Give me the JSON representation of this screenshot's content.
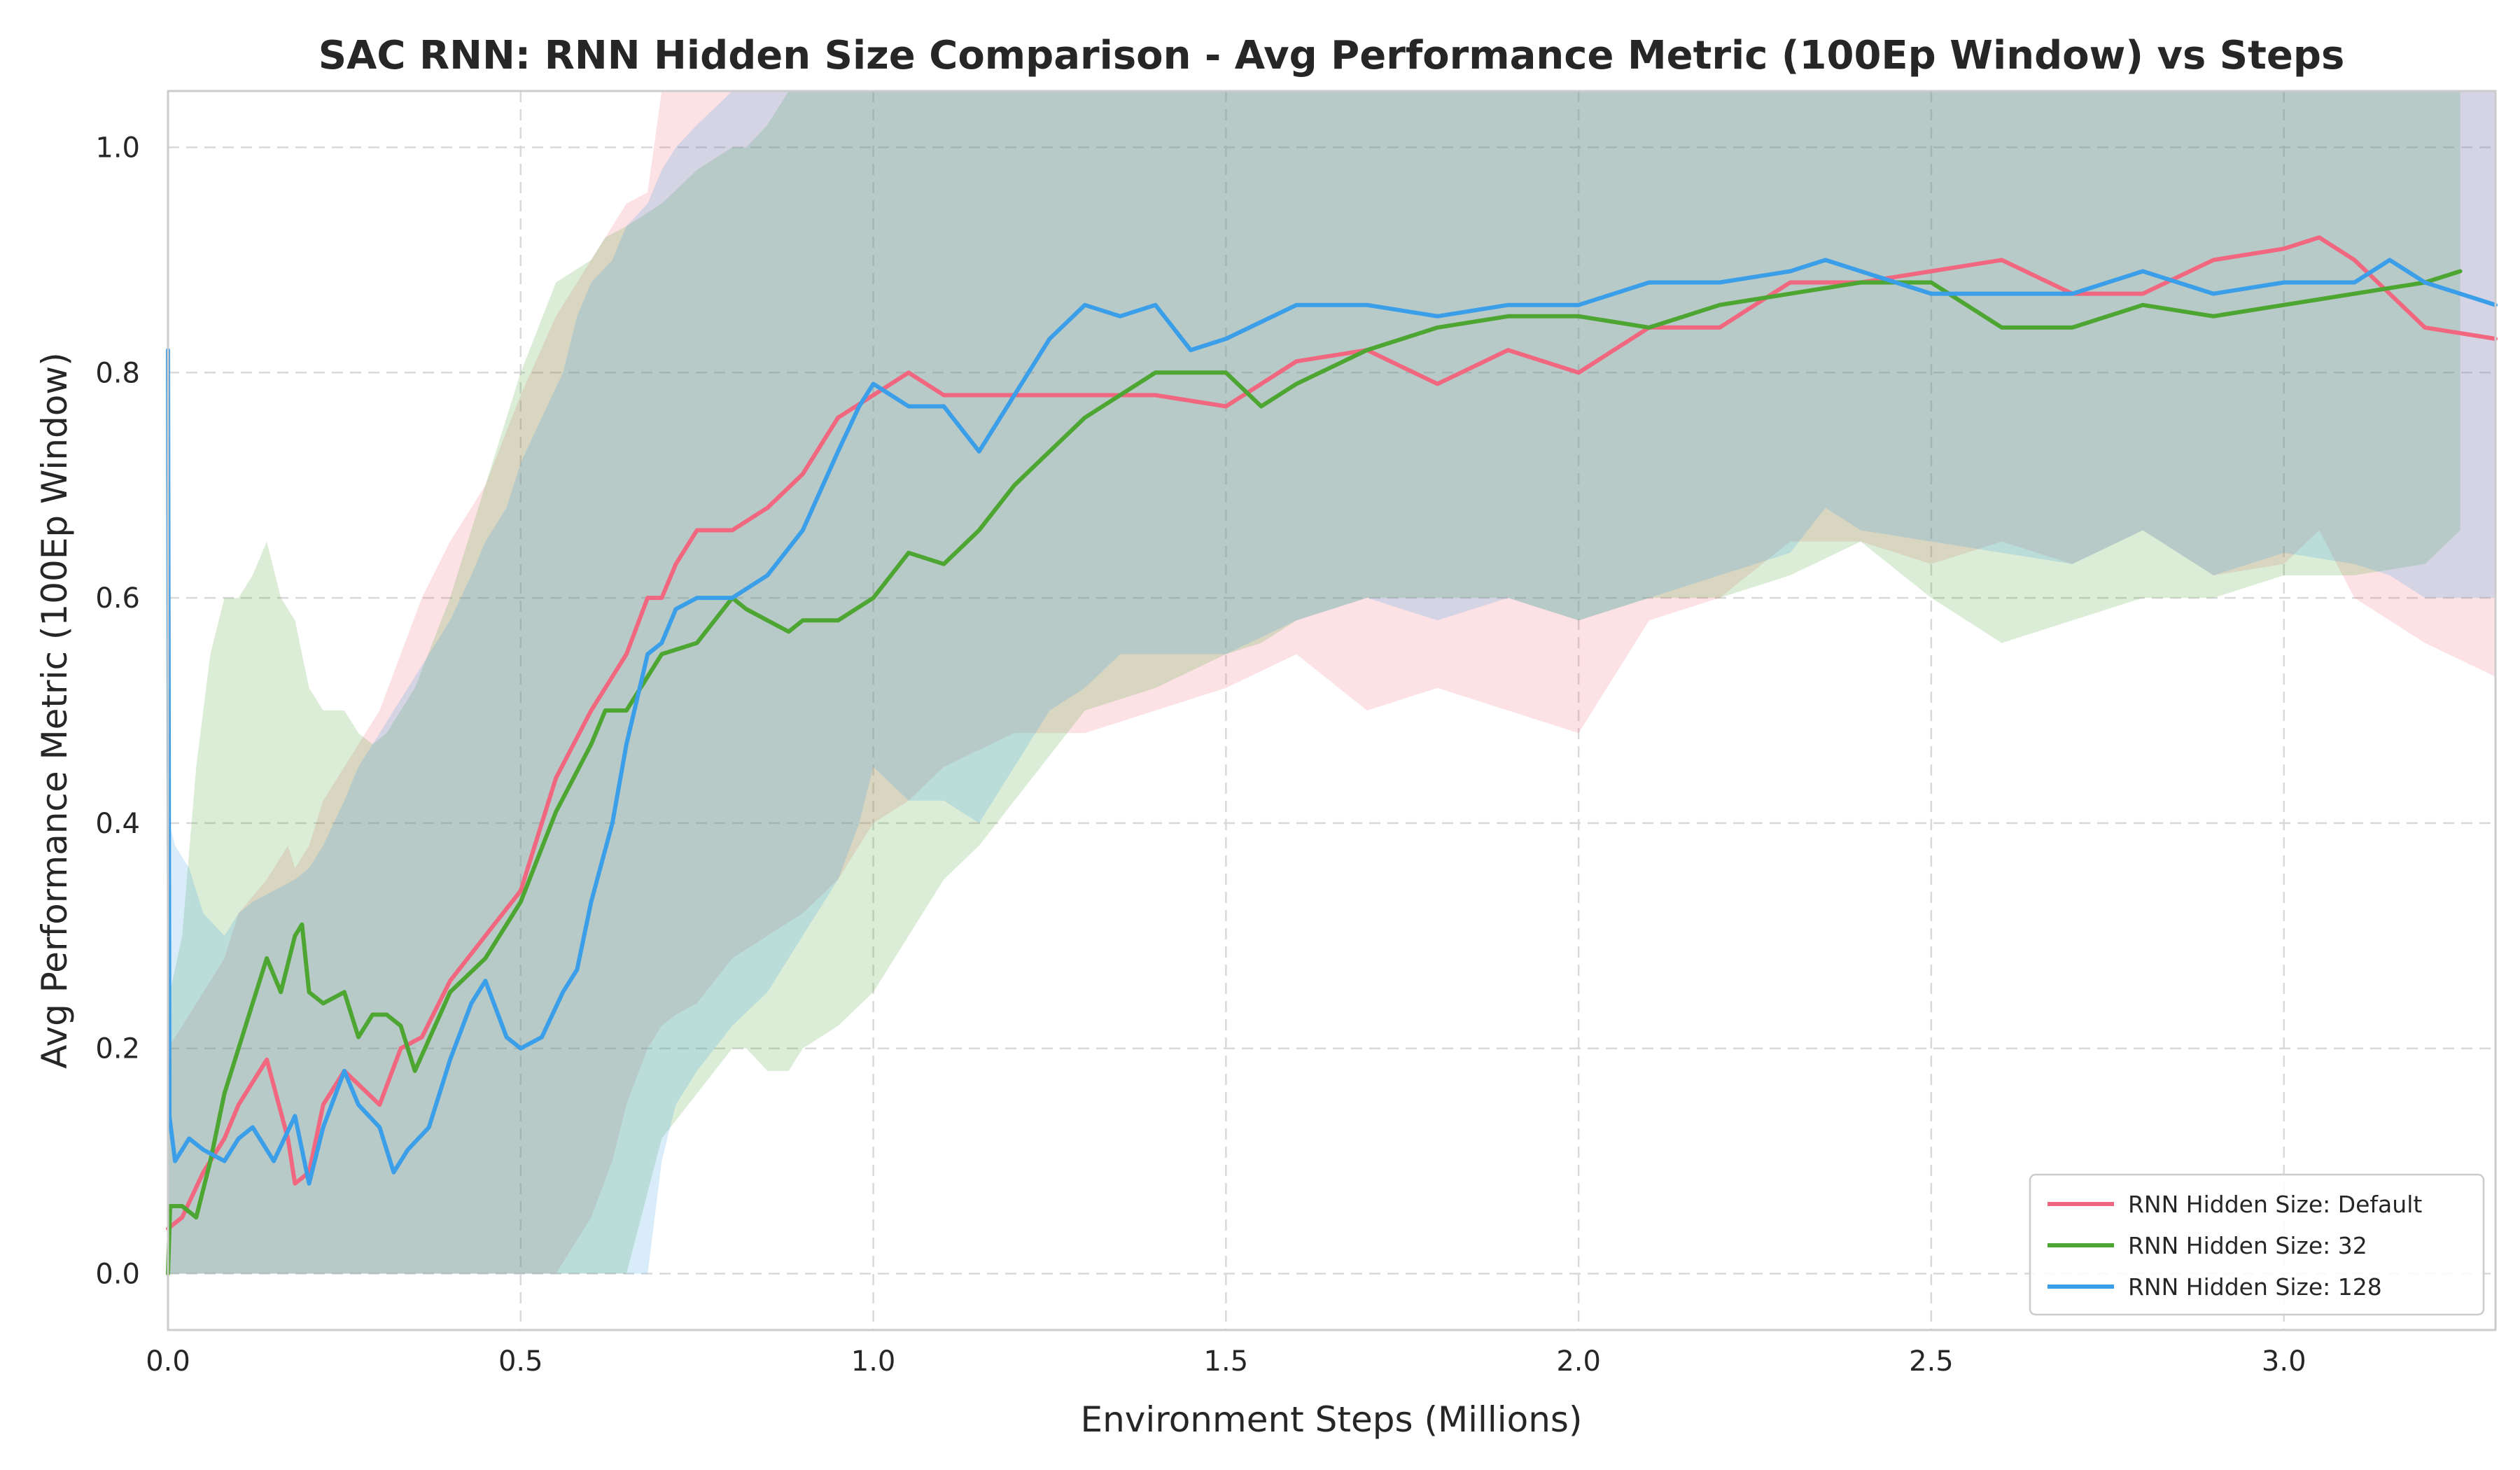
{
  "chart_data": {
    "type": "line",
    "title": "SAC RNN: RNN Hidden Size Comparison - Avg Performance Metric (100Ep Window) vs Steps",
    "xlabel": "Environment Steps (Millions)",
    "ylabel": "Avg Performance Metric (100Ep Window)",
    "xlim": [
      0,
      3.3
    ],
    "ylim": [
      -0.05,
      1.05
    ],
    "xticks": [
      0.0,
      0.5,
      1.0,
      1.5,
      2.0,
      2.5,
      3.0
    ],
    "xtick_labels": [
      "0.0",
      "0.5",
      "1.0",
      "1.5",
      "2.0",
      "2.5",
      "3.0"
    ],
    "yticks": [
      0.0,
      0.2,
      0.4,
      0.6,
      0.8,
      1.0
    ],
    "ytick_labels": [
      "0.0",
      "0.2",
      "0.4",
      "0.6",
      "0.8",
      "1.0"
    ],
    "grid": true,
    "legend_position": "bottom-right",
    "series": [
      {
        "name": "RNN Hidden Size: Default",
        "color": "#f0677f",
        "x": [
          0.0,
          0.02,
          0.05,
          0.08,
          0.1,
          0.14,
          0.17,
          0.18,
          0.2,
          0.22,
          0.25,
          0.3,
          0.33,
          0.36,
          0.4,
          0.45,
          0.5,
          0.55,
          0.6,
          0.63,
          0.65,
          0.68,
          0.7,
          0.72,
          0.75,
          0.8,
          0.85,
          0.9,
          0.95,
          1.0,
          1.05,
          1.1,
          1.2,
          1.3,
          1.4,
          1.5,
          1.6,
          1.7,
          1.8,
          1.9,
          2.0,
          2.1,
          2.2,
          2.3,
          2.4,
          2.5,
          2.6,
          2.7,
          2.8,
          2.9,
          3.0,
          3.05,
          3.1,
          3.2,
          3.3
        ],
        "y": [
          0.04,
          0.05,
          0.09,
          0.12,
          0.15,
          0.19,
          0.12,
          0.08,
          0.09,
          0.15,
          0.18,
          0.15,
          0.2,
          0.21,
          0.26,
          0.3,
          0.34,
          0.44,
          0.5,
          0.53,
          0.55,
          0.6,
          0.6,
          0.63,
          0.66,
          0.66,
          0.68,
          0.71,
          0.76,
          0.78,
          0.8,
          0.78,
          0.78,
          0.78,
          0.78,
          0.77,
          0.81,
          0.82,
          0.79,
          0.82,
          0.8,
          0.84,
          0.84,
          0.88,
          0.88,
          0.89,
          0.9,
          0.87,
          0.87,
          0.9,
          0.91,
          0.92,
          0.9,
          0.84,
          0.83
        ],
        "band_lower": [
          0.0,
          0.0,
          0.0,
          0.0,
          0.0,
          0.0,
          0.0,
          0.0,
          0.0,
          0.0,
          0.0,
          0.0,
          0.0,
          0.0,
          0.0,
          0.0,
          0.0,
          0.0,
          0.05,
          0.1,
          0.15,
          0.2,
          0.22,
          0.23,
          0.24,
          0.28,
          0.3,
          0.32,
          0.35,
          0.4,
          0.42,
          0.45,
          0.48,
          0.48,
          0.5,
          0.52,
          0.55,
          0.5,
          0.52,
          0.5,
          0.48,
          0.58,
          0.6,
          0.65,
          0.65,
          0.63,
          0.65,
          0.63,
          0.66,
          0.62,
          0.63,
          0.66,
          0.6,
          0.56,
          0.53
        ],
        "band_upper": [
          0.2,
          0.22,
          0.25,
          0.28,
          0.32,
          0.35,
          0.38,
          0.36,
          0.38,
          0.42,
          0.45,
          0.5,
          0.55,
          0.6,
          0.65,
          0.7,
          0.78,
          0.85,
          0.9,
          0.93,
          0.95,
          0.96,
          1.05,
          1.05,
          1.05,
          1.05,
          1.05,
          1.05,
          1.05,
          1.05,
          1.05,
          1.05,
          1.05,
          1.05,
          1.05,
          1.05,
          1.05,
          1.05,
          1.05,
          1.05,
          1.05,
          1.05,
          1.05,
          1.05,
          1.05,
          1.05,
          1.05,
          1.05,
          1.05,
          1.05,
          1.05,
          1.05,
          1.05,
          1.05,
          1.05
        ]
      },
      {
        "name": "RNN Hidden Size: 32",
        "color": "#4da532",
        "x": [
          0.0,
          0.003,
          0.02,
          0.04,
          0.06,
          0.08,
          0.1,
          0.12,
          0.14,
          0.16,
          0.18,
          0.19,
          0.2,
          0.22,
          0.25,
          0.27,
          0.29,
          0.31,
          0.33,
          0.35,
          0.4,
          0.45,
          0.5,
          0.55,
          0.6,
          0.62,
          0.65,
          0.7,
          0.75,
          0.8,
          0.82,
          0.85,
          0.88,
          0.9,
          0.95,
          1.0,
          1.05,
          1.1,
          1.15,
          1.2,
          1.3,
          1.4,
          1.5,
          1.55,
          1.6,
          1.7,
          1.8,
          1.9,
          2.0,
          2.1,
          2.2,
          2.3,
          2.4,
          2.5,
          2.6,
          2.7,
          2.8,
          2.9,
          3.0,
          3.1,
          3.2,
          3.25
        ],
        "y": [
          0.0,
          0.06,
          0.06,
          0.05,
          0.1,
          0.16,
          0.2,
          0.24,
          0.28,
          0.25,
          0.3,
          0.31,
          0.25,
          0.24,
          0.25,
          0.21,
          0.23,
          0.23,
          0.22,
          0.18,
          0.25,
          0.28,
          0.33,
          0.41,
          0.47,
          0.5,
          0.5,
          0.55,
          0.56,
          0.6,
          0.59,
          0.58,
          0.57,
          0.58,
          0.58,
          0.6,
          0.64,
          0.63,
          0.66,
          0.7,
          0.76,
          0.8,
          0.8,
          0.77,
          0.79,
          0.82,
          0.84,
          0.85,
          0.85,
          0.84,
          0.86,
          0.87,
          0.88,
          0.88,
          0.84,
          0.84,
          0.86,
          0.85,
          0.86,
          0.87,
          0.88,
          0.89
        ],
        "band_lower": [
          0.0,
          0.0,
          0.0,
          0.0,
          0.0,
          0.0,
          0.0,
          0.0,
          0.0,
          0.0,
          0.0,
          0.0,
          0.0,
          0.0,
          0.0,
          0.0,
          0.0,
          0.0,
          0.0,
          0.0,
          0.0,
          0.0,
          0.0,
          0.0,
          0.0,
          0.0,
          0.0,
          0.12,
          0.16,
          0.2,
          0.2,
          0.18,
          0.18,
          0.2,
          0.22,
          0.25,
          0.3,
          0.35,
          0.38,
          0.42,
          0.5,
          0.52,
          0.55,
          0.56,
          0.58,
          0.6,
          0.6,
          0.6,
          0.58,
          0.6,
          0.6,
          0.62,
          0.65,
          0.6,
          0.56,
          0.58,
          0.6,
          0.6,
          0.62,
          0.62,
          0.63,
          0.66
        ],
        "band_upper": [
          0.06,
          0.25,
          0.3,
          0.45,
          0.55,
          0.6,
          0.6,
          0.62,
          0.65,
          0.6,
          0.58,
          0.55,
          0.52,
          0.5,
          0.5,
          0.48,
          0.47,
          0.48,
          0.5,
          0.52,
          0.6,
          0.7,
          0.8,
          0.88,
          0.9,
          0.92,
          0.93,
          0.95,
          0.98,
          1.0,
          1.0,
          1.02,
          1.05,
          1.05,
          1.05,
          1.05,
          1.05,
          1.05,
          1.05,
          1.05,
          1.05,
          1.05,
          1.05,
          1.05,
          1.05,
          1.05,
          1.05,
          1.05,
          1.05,
          1.05,
          1.05,
          1.05,
          1.05,
          1.05,
          1.05,
          1.05,
          1.05,
          1.05,
          1.05,
          1.05,
          1.05,
          1.05
        ]
      },
      {
        "name": "RNN Hidden Size: 128",
        "color": "#3a9ee8",
        "x": [
          0.0,
          0.002,
          0.01,
          0.03,
          0.05,
          0.08,
          0.1,
          0.12,
          0.15,
          0.18,
          0.2,
          0.22,
          0.25,
          0.27,
          0.3,
          0.32,
          0.34,
          0.37,
          0.4,
          0.43,
          0.45,
          0.48,
          0.5,
          0.53,
          0.56,
          0.58,
          0.6,
          0.63,
          0.65,
          0.68,
          0.7,
          0.72,
          0.75,
          0.8,
          0.85,
          0.9,
          0.95,
          0.98,
          1.0,
          1.05,
          1.1,
          1.15,
          1.2,
          1.25,
          1.3,
          1.35,
          1.4,
          1.45,
          1.5,
          1.6,
          1.7,
          1.8,
          1.9,
          2.0,
          2.1,
          2.2,
          2.3,
          2.35,
          2.4,
          2.5,
          2.6,
          2.7,
          2.8,
          2.9,
          3.0,
          3.1,
          3.15,
          3.2,
          3.3
        ],
        "y": [
          0.82,
          0.14,
          0.1,
          0.12,
          0.11,
          0.1,
          0.12,
          0.13,
          0.1,
          0.14,
          0.08,
          0.13,
          0.18,
          0.15,
          0.13,
          0.09,
          0.11,
          0.13,
          0.19,
          0.24,
          0.26,
          0.21,
          0.2,
          0.21,
          0.25,
          0.27,
          0.33,
          0.4,
          0.47,
          0.55,
          0.56,
          0.59,
          0.6,
          0.6,
          0.62,
          0.66,
          0.73,
          0.77,
          0.79,
          0.77,
          0.77,
          0.73,
          0.78,
          0.83,
          0.86,
          0.85,
          0.86,
          0.82,
          0.83,
          0.86,
          0.86,
          0.85,
          0.86,
          0.86,
          0.88,
          0.88,
          0.89,
          0.9,
          0.89,
          0.87,
          0.87,
          0.87,
          0.89,
          0.87,
          0.88,
          0.88,
          0.9,
          0.88,
          0.86
        ],
        "band_lower": [
          0.0,
          0.0,
          0.0,
          0.0,
          0.0,
          0.0,
          0.0,
          0.0,
          0.0,
          0.0,
          0.0,
          0.0,
          0.0,
          0.0,
          0.0,
          0.0,
          0.0,
          0.0,
          0.0,
          0.0,
          0.0,
          0.0,
          0.0,
          0.0,
          0.0,
          0.0,
          0.0,
          0.0,
          0.0,
          0.0,
          0.1,
          0.15,
          0.18,
          0.22,
          0.25,
          0.3,
          0.35,
          0.4,
          0.45,
          0.42,
          0.42,
          0.4,
          0.45,
          0.5,
          0.52,
          0.55,
          0.55,
          0.55,
          0.55,
          0.58,
          0.6,
          0.58,
          0.6,
          0.58,
          0.6,
          0.62,
          0.64,
          0.68,
          0.66,
          0.65,
          0.64,
          0.63,
          0.66,
          0.62,
          0.64,
          0.63,
          0.62,
          0.6,
          0.6
        ],
        "band_upper": [
          1.05,
          0.4,
          0.38,
          0.36,
          0.32,
          0.3,
          0.32,
          0.33,
          0.34,
          0.35,
          0.36,
          0.38,
          0.42,
          0.45,
          0.48,
          0.5,
          0.52,
          0.55,
          0.58,
          0.62,
          0.65,
          0.68,
          0.72,
          0.76,
          0.8,
          0.85,
          0.88,
          0.9,
          0.93,
          0.95,
          0.98,
          1.0,
          1.02,
          1.05,
          1.05,
          1.05,
          1.05,
          1.05,
          1.05,
          1.05,
          1.05,
          1.05,
          1.05,
          1.05,
          1.05,
          1.05,
          1.05,
          1.05,
          1.05,
          1.05,
          1.05,
          1.05,
          1.05,
          1.05,
          1.05,
          1.05,
          1.05,
          1.05,
          1.05,
          1.05,
          1.05,
          1.05,
          1.05,
          1.05,
          1.05,
          1.05,
          1.05,
          1.05,
          1.05
        ]
      }
    ]
  }
}
